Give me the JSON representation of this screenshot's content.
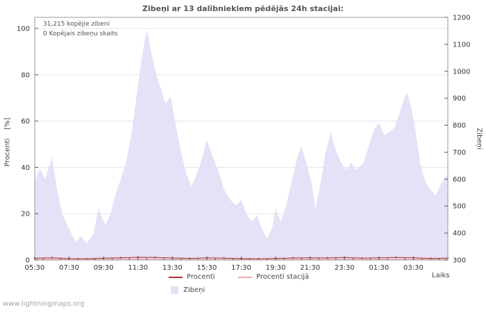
{
  "footer": {
    "watermark": "www.lightningmaps.org"
  },
  "chart_data": {
    "type": "area",
    "title": "Zibeņi ar 13 dalībniekiem pēdējās 24h stacijai:",
    "annotations": [
      "31,215 kopējie zibeni",
      "0 Kopējais zibeņu skaits"
    ],
    "left_axis": {
      "label": "Procenti    [%]",
      "ticks": [
        0,
        20,
        40,
        60,
        80,
        100
      ],
      "range": [
        0,
        104.8
      ]
    },
    "right_axis": {
      "label": "Zibeņi",
      "ticks": [
        300,
        400,
        500,
        600,
        700,
        800,
        900,
        1000,
        1100,
        1200
      ],
      "range": [
        300,
        1200
      ]
    },
    "x_axis": {
      "label": "Laiks",
      "tick_labels": [
        "05:30",
        "07:30",
        "09:30",
        "11:30",
        "13:30",
        "15:30",
        "17:30",
        "19:30",
        "21:30",
        "23:30",
        "01:30",
        "03:30"
      ],
      "range_hours": [
        5.5,
        29.5
      ],
      "tick_step_hours": 2
    },
    "grid": true,
    "colors": {
      "grid": "#e4e4e4",
      "border": "#999999",
      "tick": "#555555",
      "tick_text": "#333333"
    },
    "legend": [
      {
        "label": "Procenti",
        "color": "#b03030",
        "type": "line"
      },
      {
        "label": "Procenti stacijā",
        "color": "#efa9a9",
        "type": "line"
      },
      {
        "label": "Zibeņi",
        "color": "#e5e1f7",
        "type": "area"
      }
    ],
    "series": [
      {
        "name": "Zibeņi",
        "type": "area",
        "axis": "right",
        "color": "#e5e1f7",
        "points": [
          [
            5.5,
            595
          ],
          [
            5.8,
            640
          ],
          [
            6.1,
            600
          ],
          [
            6.3,
            640
          ],
          [
            6.5,
            683
          ],
          [
            6.8,
            560
          ],
          [
            7.1,
            470
          ],
          [
            7.5,
            415
          ],
          [
            7.9,
            365
          ],
          [
            8.2,
            390
          ],
          [
            8.5,
            360
          ],
          [
            8.9,
            395
          ],
          [
            9.2,
            490
          ],
          [
            9.6,
            430
          ],
          [
            9.9,
            470
          ],
          [
            10.2,
            545
          ],
          [
            10.5,
            600
          ],
          [
            10.8,
            660
          ],
          [
            11.1,
            760
          ],
          [
            11.4,
            900
          ],
          [
            11.7,
            1040
          ],
          [
            11.9,
            1120
          ],
          [
            12.05,
            1150
          ],
          [
            12.3,
            1060
          ],
          [
            12.6,
            980
          ],
          [
            12.8,
            940
          ],
          [
            13.1,
            880
          ],
          [
            13.4,
            905
          ],
          [
            13.7,
            800
          ],
          [
            14.0,
            700
          ],
          [
            14.3,
            620
          ],
          [
            14.6,
            572
          ],
          [
            14.9,
            615
          ],
          [
            15.2,
            670
          ],
          [
            15.5,
            745
          ],
          [
            15.8,
            690
          ],
          [
            16.2,
            625
          ],
          [
            16.5,
            560
          ],
          [
            16.9,
            520
          ],
          [
            17.2,
            502
          ],
          [
            17.5,
            522
          ],
          [
            17.8,
            472
          ],
          [
            18.1,
            442
          ],
          [
            18.4,
            465
          ],
          [
            18.7,
            415
          ],
          [
            19.0,
            380
          ],
          [
            19.3,
            420
          ],
          [
            19.5,
            490
          ],
          [
            19.8,
            442
          ],
          [
            20.1,
            500
          ],
          [
            20.5,
            610
          ],
          [
            20.8,
            690
          ],
          [
            21.0,
            722
          ],
          [
            21.3,
            655
          ],
          [
            21.6,
            580
          ],
          [
            21.8,
            492
          ],
          [
            22.1,
            580
          ],
          [
            22.4,
            700
          ],
          [
            22.7,
            772
          ],
          [
            23.0,
            705
          ],
          [
            23.3,
            662
          ],
          [
            23.6,
            635
          ],
          [
            23.9,
            660
          ],
          [
            24.2,
            635
          ],
          [
            24.6,
            660
          ],
          [
            24.9,
            720
          ],
          [
            25.2,
            780
          ],
          [
            25.5,
            810
          ],
          [
            25.8,
            762
          ],
          [
            26.1,
            775
          ],
          [
            26.4,
            790
          ],
          [
            26.7,
            845
          ],
          [
            27.0,
            905
          ],
          [
            27.15,
            920
          ],
          [
            27.4,
            860
          ],
          [
            27.6,
            790
          ],
          [
            27.9,
            655
          ],
          [
            28.2,
            590
          ],
          [
            28.5,
            560
          ],
          [
            28.8,
            540
          ],
          [
            29.1,
            580
          ],
          [
            29.3,
            600
          ],
          [
            29.5,
            618
          ]
        ]
      },
      {
        "name": "Procenti stacijā",
        "type": "line",
        "axis": "left",
        "color": "#efa9a9",
        "points": [
          [
            5.5,
            0.3
          ],
          [
            7.5,
            0.4
          ],
          [
            9.5,
            0.3
          ],
          [
            11.5,
            0.5
          ],
          [
            13.5,
            0.4
          ],
          [
            15.5,
            0.3
          ],
          [
            17.5,
            0.3
          ],
          [
            19.5,
            0.4
          ],
          [
            21.5,
            0.3
          ],
          [
            23.5,
            0.4
          ],
          [
            25.5,
            0.3
          ],
          [
            27.5,
            0.4
          ],
          [
            29.5,
            0.3
          ]
        ]
      },
      {
        "name": "Procenti",
        "type": "line",
        "axis": "left",
        "color": "#b03030",
        "markers": true,
        "points": [
          [
            5.5,
            0.8
          ],
          [
            6.5,
            1.0
          ],
          [
            7.5,
            0.6
          ],
          [
            8.5,
            0.5
          ],
          [
            9.5,
            0.8
          ],
          [
            10.5,
            1.0
          ],
          [
            11.5,
            1.2
          ],
          [
            12.5,
            1.1
          ],
          [
            13.5,
            0.9
          ],
          [
            14.5,
            0.7
          ],
          [
            15.5,
            1.0
          ],
          [
            16.5,
            0.8
          ],
          [
            17.5,
            0.6
          ],
          [
            18.5,
            0.5
          ],
          [
            19.5,
            0.7
          ],
          [
            20.5,
            0.9
          ],
          [
            21.5,
            1.0
          ],
          [
            22.5,
            0.9
          ],
          [
            23.5,
            1.1
          ],
          [
            24.5,
            0.8
          ],
          [
            25.5,
            1.0
          ],
          [
            26.5,
            1.1
          ],
          [
            27.5,
            1.0
          ],
          [
            28.5,
            0.7
          ],
          [
            29.5,
            0.8
          ]
        ]
      }
    ]
  }
}
